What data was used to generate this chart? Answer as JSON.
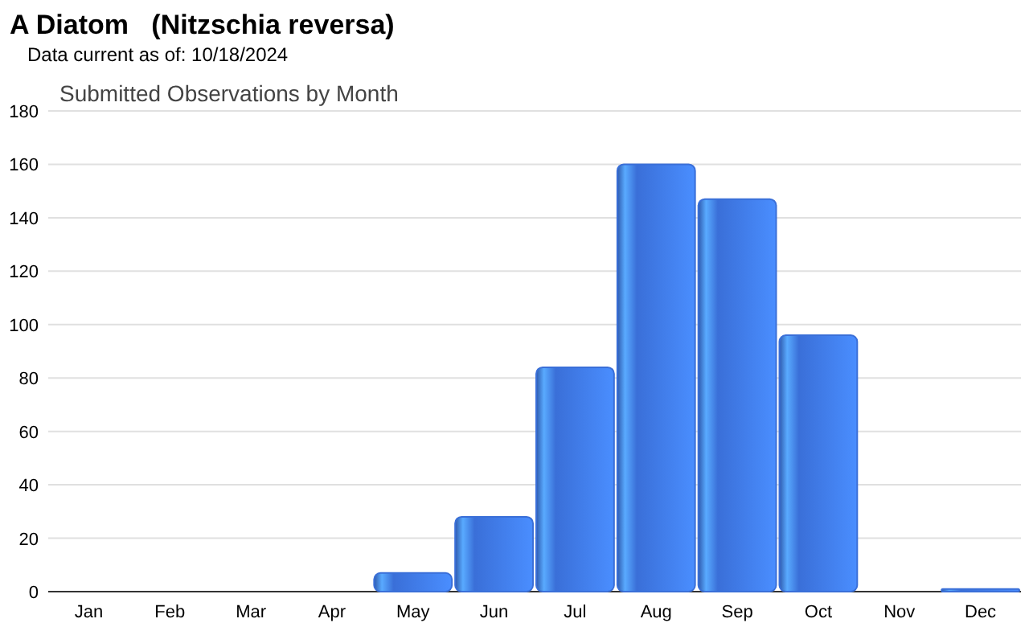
{
  "chart_data": {
    "type": "bar",
    "title": "A Diatom   (Nitzschia reversa)",
    "subtitle": "Data current as of: 10/18/2024",
    "annotations": [
      "Submitted Observations by Month"
    ],
    "categories": [
      "Jan",
      "Feb",
      "Mar",
      "Apr",
      "May",
      "Jun",
      "Jul",
      "Aug",
      "Sep",
      "Oct",
      "Nov",
      "Dec"
    ],
    "values": [
      0,
      0,
      0,
      0,
      7,
      28,
      84,
      160,
      147,
      96,
      0,
      1
    ],
    "color": "#3a6fd8",
    "ylim": [
      0,
      180
    ],
    "yticks": [
      0,
      20,
      40,
      60,
      80,
      100,
      120,
      140,
      160,
      180
    ],
    "grid": "y"
  }
}
